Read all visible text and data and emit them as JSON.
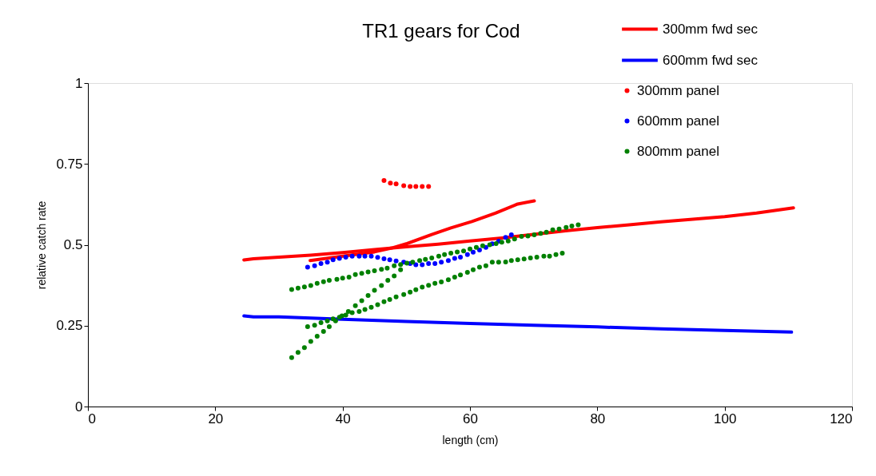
{
  "chart_data": {
    "type": "line",
    "title": "TR1 gears for Cod",
    "xlabel": "length (cm)",
    "ylabel": "relative catch rate",
    "xlim": [
      0,
      120
    ],
    "xticks": [
      0,
      20,
      40,
      60,
      80,
      100,
      120
    ],
    "ylim": [
      0,
      1
    ],
    "yticks": [
      0,
      0.25,
      0.5,
      0.75,
      1
    ],
    "grid": false,
    "legend": "top right",
    "line_style": "solid",
    "series": [
      {
        "name": "300mm fwd sec",
        "type": "line",
        "color": "#ff0000",
        "x": [
          24.5,
          26,
          30,
          35,
          40,
          45,
          50,
          55,
          60,
          65,
          70,
          75,
          80,
          85,
          90,
          95,
          100,
          105,
          110.8
        ],
        "values": [
          0.453,
          0.457,
          0.462,
          0.468,
          0.476,
          0.485,
          0.494,
          0.502,
          0.512,
          0.521,
          0.532,
          0.543,
          0.553,
          0.562,
          0.571,
          0.579,
          0.587,
          0.598,
          0.614
        ]
      },
      {
        "type": "line",
        "color": "#ff0000",
        "x": [
          34.9,
          40,
          45,
          47.7,
          50,
          54,
          57,
          60.3,
          64,
          67.5,
          70.1
        ],
        "values": [
          0.451,
          0.465,
          0.478,
          0.49,
          0.503,
          0.532,
          0.552,
          0.572,
          0.598,
          0.626,
          0.636
        ]
      },
      {
        "name": "600mm fwd sec",
        "type": "line",
        "color": "#0000ff",
        "x": [
          24.5,
          26,
          30,
          40,
          50,
          60,
          70,
          80,
          90,
          100,
          110.5
        ],
        "values": [
          0.28,
          0.277,
          0.277,
          0.27,
          0.263,
          0.257,
          0.251,
          0.246,
          0.24,
          0.235,
          0.23
        ]
      },
      {
        "name": "300mm panel",
        "type": "scatter",
        "marker": "circle",
        "color": "#ff0000",
        "x": [
          46.5,
          47.5,
          48.4,
          49.6,
          50.6,
          51.5,
          52.5,
          53.5
        ],
        "values": [
          0.699,
          0.691,
          0.688,
          0.683,
          0.68,
          0.68,
          0.68,
          0.68
        ]
      },
      {
        "name": "600mm panel",
        "type": "scatter",
        "marker": "circle",
        "color": "#0000ff",
        "x": [
          34.5,
          35.6,
          36.6,
          37.6,
          38.5,
          39.5,
          40.5,
          41.5,
          42.6,
          43.5,
          44.5,
          45.5,
          46.5,
          47.4,
          48.4,
          49.6,
          50.6,
          51.5,
          52.5,
          53.5,
          54.5,
          55.5,
          56.6,
          57.6,
          58.5,
          59.6,
          60.5,
          61.5,
          62.5,
          63.5,
          64.5,
          65.6,
          66.5
        ],
        "values": [
          0.431,
          0.435,
          0.442,
          0.446,
          0.454,
          0.458,
          0.462,
          0.465,
          0.465,
          0.465,
          0.465,
          0.461,
          0.457,
          0.454,
          0.45,
          0.446,
          0.442,
          0.438,
          0.438,
          0.442,
          0.442,
          0.446,
          0.451,
          0.458,
          0.462,
          0.47,
          0.477,
          0.484,
          0.492,
          0.503,
          0.511,
          0.523,
          0.531
        ]
      },
      {
        "name": "800mm panel",
        "type": "scatter",
        "marker": "circle",
        "color": "#008000",
        "x": [
          32.0,
          33.0,
          34.0,
          35.0,
          36.0,
          37.0,
          37.9,
          39.1,
          40.0,
          41.0,
          42.0,
          43.0,
          44.0,
          45.0,
          46.1,
          47.0,
          48.1,
          49.1,
          50.1,
          51.0,
          52.1,
          53.0,
          54.0,
          55.1,
          56.0,
          57.0,
          58.0,
          59.0,
          60.0,
          61.0,
          62.0,
          63.1,
          64.1,
          65.0,
          66.0,
          67.0,
          68.1,
          69.1,
          70.1,
          71.1,
          72.0,
          73.0,
          74.0,
          75.1,
          76.0,
          77.0,
          32.0,
          33.0,
          34.0,
          35.0,
          36.0,
          37.0,
          37.9,
          38.9,
          39.9,
          40.9,
          42.0,
          43.0,
          44.0,
          45.0,
          46.1,
          47.1,
          48.1,
          49.1,
          34.5,
          35.6,
          36.6,
          37.6,
          38.5,
          39.5,
          40.5,
          41.5,
          42.6,
          43.5,
          44.5,
          45.5,
          46.5,
          47.4,
          48.4,
          49.6,
          50.6,
          51.5,
          52.5,
          53.5,
          54.5,
          55.5,
          56.6,
          57.6,
          58.5,
          59.6,
          60.5,
          61.5,
          62.5,
          63.5,
          64.5,
          65.6,
          66.5,
          67.5,
          68.5,
          69.5,
          70.5,
          71.6,
          72.5,
          73.5,
          74.5
        ],
        "values": [
          0.362,
          0.366,
          0.37,
          0.374,
          0.381,
          0.386,
          0.39,
          0.393,
          0.397,
          0.4,
          0.408,
          0.412,
          0.416,
          0.42,
          0.424,
          0.428,
          0.435,
          0.439,
          0.443,
          0.446,
          0.451,
          0.455,
          0.459,
          0.465,
          0.47,
          0.474,
          0.478,
          0.481,
          0.487,
          0.492,
          0.497,
          0.5,
          0.504,
          0.508,
          0.512,
          0.518,
          0.526,
          0.527,
          0.531,
          0.535,
          0.539,
          0.546,
          0.549,
          0.554,
          0.558,
          0.562,
          0.151,
          0.167,
          0.182,
          0.201,
          0.217,
          0.232,
          0.247,
          0.265,
          0.28,
          0.294,
          0.312,
          0.327,
          0.343,
          0.359,
          0.374,
          0.39,
          0.404,
          0.423,
          0.247,
          0.251,
          0.259,
          0.265,
          0.271,
          0.276,
          0.283,
          0.29,
          0.294,
          0.3,
          0.307,
          0.315,
          0.324,
          0.331,
          0.339,
          0.346,
          0.354,
          0.361,
          0.369,
          0.375,
          0.381,
          0.385,
          0.392,
          0.4,
          0.407,
          0.415,
          0.423,
          0.431,
          0.435,
          0.446,
          0.446,
          0.447,
          0.451,
          0.454,
          0.456,
          0.459,
          0.462,
          0.465,
          0.465,
          0.47,
          0.474
        ]
      }
    ]
  }
}
